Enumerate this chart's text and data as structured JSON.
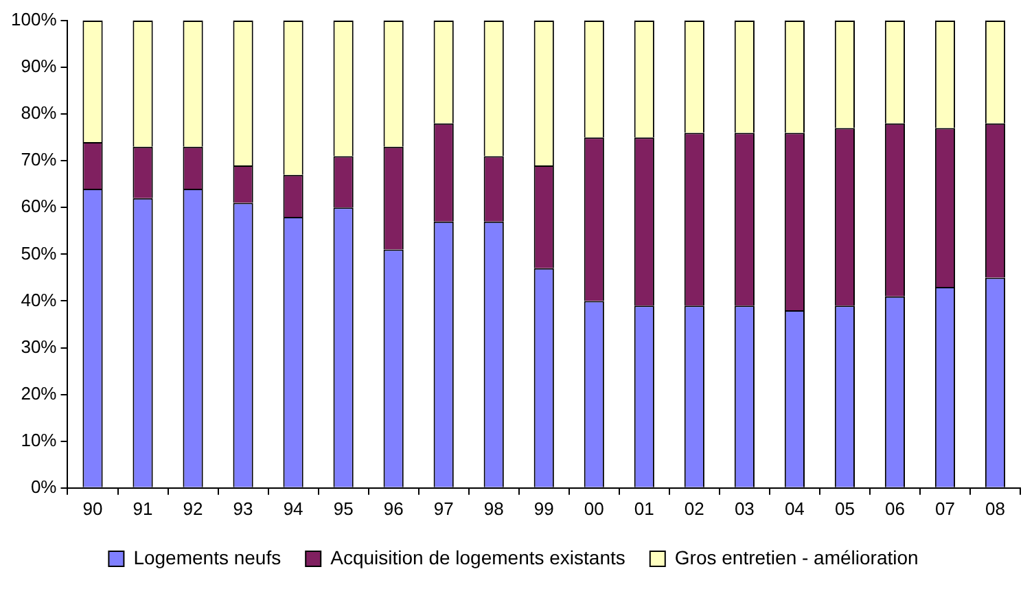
{
  "chart_data": {
    "type": "bar",
    "stacked": true,
    "grid": false,
    "legend": "bottom",
    "categories": [
      "90",
      "91",
      "92",
      "93",
      "94",
      "95",
      "96",
      "97",
      "98",
      "99",
      "00",
      "01",
      "02",
      "03",
      "04",
      "05",
      "06",
      "07",
      "08"
    ],
    "series": [
      {
        "name": "Logements neufs",
        "color": "#8080ff",
        "values": [
          64,
          62,
          64,
          61,
          58,
          60,
          51,
          57,
          57,
          47,
          40,
          39,
          39,
          39,
          38,
          39,
          41,
          43,
          45
        ]
      },
      {
        "name": "Acquisition de logements existants",
        "color": "#802060",
        "values": [
          10,
          11,
          9,
          8,
          9,
          11,
          22,
          21,
          14,
          22,
          35,
          36,
          37,
          37,
          38,
          38,
          37,
          34,
          33
        ]
      },
      {
        "name": "Gros entretien - amélioration",
        "color": "#ffffc0",
        "values": [
          26,
          27,
          27,
          31,
          33,
          29,
          27,
          22,
          29,
          31,
          25,
          25,
          24,
          24,
          24,
          23,
          22,
          23,
          22
        ]
      }
    ],
    "ylim": [
      0,
      100
    ],
    "yticks": [
      {
        "value": 0,
        "label": "0%"
      },
      {
        "value": 10,
        "label": "10%"
      },
      {
        "value": 20,
        "label": "20%"
      },
      {
        "value": 30,
        "label": "30%"
      },
      {
        "value": 40,
        "label": "40%"
      },
      {
        "value": 50,
        "label": "50%"
      },
      {
        "value": 60,
        "label": "60%"
      },
      {
        "value": 70,
        "label": "70%"
      },
      {
        "value": 80,
        "label": "80%"
      },
      {
        "value": 90,
        "label": "90%"
      },
      {
        "value": 100,
        "label": "100%"
      }
    ]
  }
}
